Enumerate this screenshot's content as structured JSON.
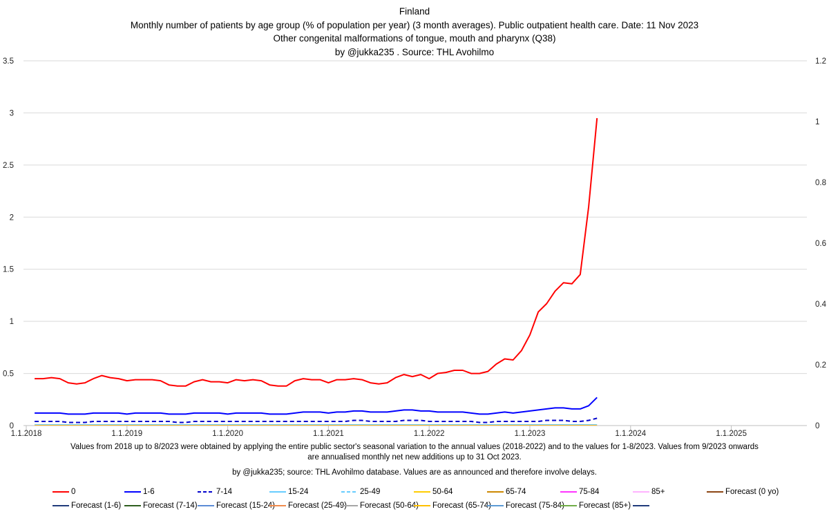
{
  "titles": {
    "line1": "Finland",
    "line2": "Monthly number of patients by age group (% of population per year) (3 month averages). Public outpatient health care. Date: 11 Nov 2023",
    "line3": "Other congenital malformations of tongue, mouth and pharynx (Q38)",
    "line4": "by @jukka235 . Source: THL Avohilmo"
  },
  "notes": {
    "line1": "Values from 2018 up to 8/2023 were obtained by applying the entire public sector's seasonal variation to the annual values (2018-2022) and to the values for 1-8/2023. Values from 9/2023 onwards",
    "line2": "are annualised monthly net new additions up to 31 Oct 2023.",
    "line3": "by @jukka235; source: THL Avohilmo database. Values are as announced and therefore involve delays."
  },
  "legend": [
    {
      "label": "0",
      "color": "#ff0000",
      "dash": false
    },
    {
      "label": "1-6",
      "color": "#0000ff",
      "dash": false
    },
    {
      "label": "7-14",
      "color": "#0000cc",
      "dash": true
    },
    {
      "label": "15-24",
      "color": "#66ccff",
      "dash": false
    },
    {
      "label": "25-49",
      "color": "#66ccff",
      "dash": true
    },
    {
      "label": "50-64",
      "color": "#ffcc00",
      "dash": false
    },
    {
      "label": "65-74",
      "color": "#cc8800",
      "dash": false
    },
    {
      "label": "75-84",
      "color": "#ff33ff",
      "dash": false
    },
    {
      "label": "85+",
      "color": "#ffb3ff",
      "dash": false
    },
    {
      "label": "Forecast (0 yo)",
      "color": "#8b4513",
      "dash": false
    },
    {
      "label": "Forecast (1-6)",
      "color": "#1f3a7a",
      "dash": false
    },
    {
      "label": "Forecast (7-14)",
      "color": "#2e5e1e",
      "dash": false
    },
    {
      "label": "Forecast (15-24)",
      "color": "#5b8bd6",
      "dash": false
    },
    {
      "label": "Forecast (25-49)",
      "color": "#f08a4b",
      "dash": false
    },
    {
      "label": "Forecast (50-64)",
      "color": "#a6a6a6",
      "dash": false
    },
    {
      "label": "Forecast (65-74)",
      "color": "#ffc000",
      "dash": false
    },
    {
      "label": "Forecast (75-84)",
      "color": "#5b9bd5",
      "dash": false
    },
    {
      "label": "Forecast (85+)",
      "color": "#70ad47",
      "dash": false
    },
    {
      "label": "",
      "color": "#1f3a7a",
      "dash": false
    }
  ],
  "chart_data": {
    "type": "line",
    "title": "Other congenital malformations of tongue, mouth and pharynx (Q38)",
    "xlabel": "",
    "ylabel": "",
    "x_ticks": [
      "1.1.2018",
      "1.1.2019",
      "1.1.2020",
      "1.1.2021",
      "1.1.2022",
      "1.1.2023",
      "1.1.2024",
      "1.1.2025"
    ],
    "y_ticks": [
      "0",
      "0.5",
      "1",
      "1.5",
      "2",
      "2.5",
      "3",
      "3.5"
    ],
    "y2_ticks": [
      "0",
      "0.2",
      "0.4",
      "0.6",
      "0.8",
      "1",
      "1.2"
    ],
    "ylim": [
      0,
      3.5
    ],
    "y2lim": [
      0,
      1.2
    ],
    "x_start": "2018-02",
    "series": [
      {
        "name": "0",
        "color": "#ff0000",
        "dash": false,
        "width": 2,
        "values": [
          0.45,
          0.45,
          0.46,
          0.45,
          0.41,
          0.4,
          0.41,
          0.45,
          0.48,
          0.46,
          0.45,
          0.43,
          0.44,
          0.44,
          0.44,
          0.43,
          0.39,
          0.38,
          0.38,
          0.42,
          0.44,
          0.42,
          0.42,
          0.41,
          0.44,
          0.43,
          0.44,
          0.43,
          0.39,
          0.38,
          0.38,
          0.43,
          0.45,
          0.44,
          0.44,
          0.41,
          0.44,
          0.44,
          0.45,
          0.44,
          0.41,
          0.4,
          0.41,
          0.46,
          0.49,
          0.47,
          0.49,
          0.45,
          0.5,
          0.51,
          0.53,
          0.53,
          0.5,
          0.5,
          0.52,
          0.59,
          0.64,
          0.63,
          0.72,
          0.87,
          1.09,
          1.17,
          1.29,
          1.37,
          1.36,
          1.45,
          2.1,
          2.95
        ]
      },
      {
        "name": "1-6",
        "color": "#0000ff",
        "dash": false,
        "width": 2,
        "values": [
          0.12,
          0.12,
          0.12,
          0.12,
          0.11,
          0.11,
          0.11,
          0.12,
          0.12,
          0.12,
          0.12,
          0.11,
          0.12,
          0.12,
          0.12,
          0.12,
          0.11,
          0.11,
          0.11,
          0.12,
          0.12,
          0.12,
          0.12,
          0.11,
          0.12,
          0.12,
          0.12,
          0.12,
          0.11,
          0.11,
          0.11,
          0.12,
          0.13,
          0.13,
          0.13,
          0.12,
          0.13,
          0.13,
          0.14,
          0.14,
          0.13,
          0.13,
          0.13,
          0.14,
          0.15,
          0.15,
          0.14,
          0.14,
          0.13,
          0.13,
          0.13,
          0.13,
          0.12,
          0.11,
          0.11,
          0.12,
          0.13,
          0.12,
          0.13,
          0.14,
          0.15,
          0.16,
          0.17,
          0.17,
          0.16,
          0.16,
          0.19,
          0.27
        ]
      },
      {
        "name": "7-14",
        "color": "#0000cc",
        "dash": true,
        "width": 2,
        "values": [
          0.04,
          0.04,
          0.04,
          0.04,
          0.03,
          0.03,
          0.03,
          0.04,
          0.04,
          0.04,
          0.04,
          0.04,
          0.04,
          0.04,
          0.04,
          0.04,
          0.04,
          0.03,
          0.03,
          0.04,
          0.04,
          0.04,
          0.04,
          0.04,
          0.04,
          0.04,
          0.04,
          0.04,
          0.04,
          0.04,
          0.04,
          0.04,
          0.04,
          0.04,
          0.04,
          0.04,
          0.04,
          0.04,
          0.05,
          0.05,
          0.04,
          0.04,
          0.04,
          0.04,
          0.05,
          0.05,
          0.05,
          0.04,
          0.04,
          0.04,
          0.04,
          0.04,
          0.04,
          0.03,
          0.03,
          0.04,
          0.04,
          0.04,
          0.04,
          0.04,
          0.04,
          0.05,
          0.05,
          0.05,
          0.04,
          0.04,
          0.05,
          0.07
        ]
      },
      {
        "name": "15-24",
        "color": "#66ccff",
        "dash": false,
        "width": 1,
        "values": [
          0.01,
          0.01,
          0.01,
          0.01,
          0.01,
          0.01,
          0.01,
          0.01,
          0.01,
          0.01,
          0.01,
          0.01,
          0.01,
          0.01,
          0.01,
          0.01,
          0.01,
          0.01,
          0.01,
          0.01,
          0.01,
          0.01,
          0.01,
          0.01,
          0.01,
          0.01,
          0.01,
          0.01,
          0.01,
          0.01,
          0.01,
          0.01,
          0.01,
          0.01,
          0.01,
          0.01,
          0.01,
          0.01,
          0.01,
          0.01,
          0.01,
          0.01,
          0.01,
          0.01,
          0.01,
          0.01,
          0.01,
          0.01,
          0.01,
          0.01,
          0.01,
          0.01,
          0.01,
          0.01,
          0.01,
          0.01,
          0.01,
          0.01,
          0.01,
          0.01,
          0.01,
          0.01,
          0.01,
          0.01,
          0.01,
          0.01,
          0.01,
          0.01
        ]
      },
      {
        "name": "50-64",
        "color": "#ffcc00",
        "dash": false,
        "width": 1,
        "values": [
          0.004,
          0.004,
          0.004,
          0.004,
          0.004,
          0.004,
          0.004,
          0.004,
          0.004,
          0.004,
          0.004,
          0.004,
          0.004,
          0.004,
          0.004,
          0.004,
          0.004,
          0.004,
          0.004,
          0.004,
          0.004,
          0.004,
          0.004,
          0.004,
          0.004,
          0.004,
          0.004,
          0.004,
          0.004,
          0.004,
          0.004,
          0.004,
          0.004,
          0.004,
          0.004,
          0.004,
          0.004,
          0.004,
          0.004,
          0.004,
          0.004,
          0.004,
          0.004,
          0.004,
          0.004,
          0.004,
          0.004,
          0.004,
          0.004,
          0.004,
          0.004,
          0.004,
          0.004,
          0.004,
          0.004,
          0.004,
          0.004,
          0.004,
          0.004,
          0.004,
          0.004,
          0.004,
          0.004,
          0.004,
          0.004,
          0.004,
          0.004,
          0.004
        ]
      },
      {
        "name": "75-84",
        "color": "#ff33ff",
        "dash": false,
        "width": 1,
        "values": [
          0.003,
          0.003,
          0.003,
          0.003,
          0.003,
          0.003,
          0.003,
          0.003,
          0.003,
          0.003,
          0.003,
          0.003,
          0.003,
          0.003,
          0.003,
          0.003,
          0.003,
          0.003,
          0.003,
          0.003,
          0.003,
          0.003,
          0.003,
          0.003,
          0.003,
          0.003,
          0.003,
          0.003,
          0.003,
          0.003,
          0.003,
          0.003,
          0.003,
          0.003,
          0.003,
          0.003,
          0.003,
          0.003,
          0.003,
          0.003,
          0.003,
          0.003,
          0.003,
          0.003,
          0.003,
          0.003,
          0.003,
          0.003,
          0.003,
          0.003,
          0.003,
          0.003,
          0.003,
          0.003,
          0.003,
          0.003,
          0.003,
          0.003,
          0.003,
          0.003,
          0.003,
          0.003,
          0.003,
          0.003,
          0.003,
          0.003,
          0.003,
          0.003
        ]
      }
    ]
  }
}
